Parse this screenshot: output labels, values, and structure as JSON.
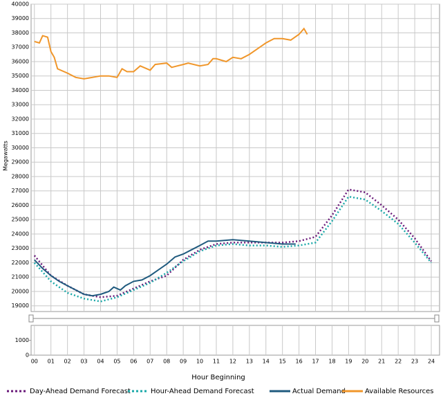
{
  "chart_data": {
    "type": "line",
    "y_label": "Megawatts",
    "x_label": "Hour Beginning",
    "xlim": [
      -0.2,
      24.5
    ],
    "xticks": [
      {
        "value": 0,
        "label": "00"
      },
      {
        "value": 1,
        "label": "01"
      },
      {
        "value": 2,
        "label": "02"
      },
      {
        "value": 3,
        "label": "03"
      },
      {
        "value": 4,
        "label": "04"
      },
      {
        "value": 5,
        "label": "05"
      },
      {
        "value": 6,
        "label": "06"
      },
      {
        "value": 7,
        "label": "07"
      },
      {
        "value": 8,
        "label": "08"
      },
      {
        "value": 9,
        "label": "09"
      },
      10,
      11,
      12,
      13,
      14,
      15,
      16,
      17,
      18,
      19,
      20,
      21,
      22,
      23,
      24
    ],
    "ylim": [
      18600,
      40000
    ],
    "yticks": [
      19000,
      20000,
      21000,
      22000,
      23000,
      24000,
      25000,
      26000,
      27000,
      28000,
      29000,
      30000,
      31000,
      32000,
      33000,
      34000,
      35000,
      36000,
      37000,
      38000,
      39000,
      40000
    ],
    "lower_ylim": [
      0,
      2000
    ],
    "lower_yticks": [
      0,
      1000
    ],
    "grid": true,
    "series": [
      {
        "name": "Day-Ahead Demand Forecast",
        "color": "#6a1a7a",
        "dashed": true,
        "x": [
          0,
          1,
          2,
          3,
          4,
          5,
          6,
          7,
          8,
          9,
          10,
          11,
          12,
          13,
          14,
          15,
          16,
          17,
          18,
          19,
          20,
          21,
          22,
          23,
          24
        ],
        "values": [
          22500,
          21100,
          20400,
          19800,
          19600,
          19700,
          20200,
          20700,
          21100,
          22200,
          22900,
          23300,
          23400,
          23400,
          23400,
          23400,
          23500,
          23800,
          25300,
          27100,
          26900,
          26000,
          25000,
          23700,
          22100
        ]
      },
      {
        "name": "Hour-Ahead Demand Forecast",
        "color": "#1aa8a8",
        "dashed": true,
        "x": [
          0,
          1,
          2,
          3,
          4,
          5,
          6,
          7,
          8,
          9,
          10,
          11,
          12,
          13,
          14,
          15,
          16,
          17,
          18,
          19,
          20,
          21,
          22,
          23,
          24
        ],
        "values": [
          22000,
          20700,
          19900,
          19500,
          19300,
          19600,
          20100,
          20600,
          21300,
          22100,
          22800,
          23200,
          23300,
          23200,
          23200,
          23100,
          23200,
          23400,
          24900,
          26600,
          26400,
          25600,
          24700,
          23400,
          22000
        ]
      },
      {
        "name": "Actual Demand",
        "color": "#1f5a7e",
        "dashed": false,
        "x": [
          0,
          0.5,
          1,
          1.5,
          2,
          2.5,
          3,
          3.5,
          4,
          4.5,
          4.8,
          5,
          5.2,
          5.5,
          6,
          6.5,
          7,
          7.5,
          8,
          8.5,
          9,
          9.5,
          10,
          10.5,
          11,
          12,
          13,
          14,
          15,
          15.8
        ],
        "values": [
          22200,
          21600,
          21100,
          20700,
          20400,
          20100,
          19800,
          19700,
          19800,
          20000,
          20300,
          20200,
          20100,
          20400,
          20700,
          20800,
          21100,
          21500,
          21900,
          22400,
          22600,
          22900,
          23200,
          23500,
          23500,
          23600,
          23500,
          23400,
          23300,
          23300
        ]
      },
      {
        "name": "Available Resources",
        "color": "#f0962a",
        "dashed": false,
        "x": [
          0,
          0.3,
          0.5,
          0.8,
          1,
          1.2,
          1.4,
          2,
          2.5,
          3,
          3.5,
          4,
          4.5,
          5,
          5.3,
          5.6,
          6,
          6.4,
          7,
          7.3,
          8,
          8.3,
          9,
          9.3,
          10,
          10.5,
          10.8,
          11,
          11.6,
          12,
          12.5,
          13,
          13.5,
          14,
          14.5,
          15,
          15.5,
          16,
          16.3,
          16.5
        ],
        "values": [
          37400,
          37300,
          37800,
          37700,
          36700,
          36300,
          35500,
          35200,
          34900,
          34800,
          34900,
          35000,
          35000,
          34900,
          35500,
          35300,
          35300,
          35700,
          35400,
          35800,
          35900,
          35600,
          35800,
          35900,
          35700,
          35800,
          36200,
          36200,
          36000,
          36300,
          36200,
          36500,
          36900,
          37300,
          37600,
          37600,
          37500,
          37900,
          38300,
          37900
        ]
      }
    ]
  }
}
